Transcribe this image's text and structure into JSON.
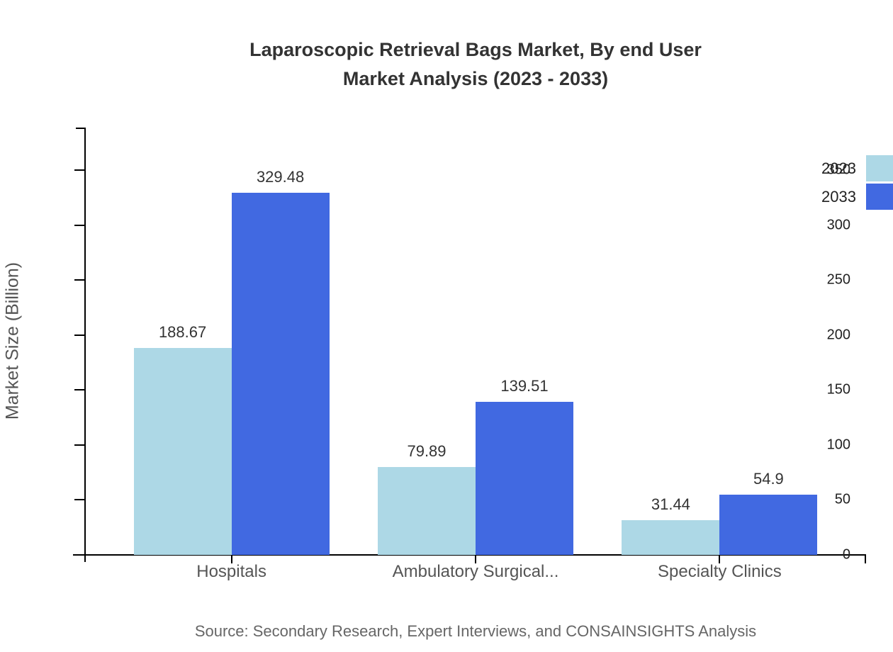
{
  "header": {
    "line1": "Laparoscopic Retrieval Bags Market, By end User",
    "line2": "Market Analysis (2023 - 2033)"
  },
  "source": "Source: Secondary Research, Expert Interviews, and CONSAINSIGHTS Analysis",
  "chart_data": {
    "type": "bar",
    "title": "Laparoscopic Retrieval Bags Market, By end User Market Analysis (2023 - 2033)",
    "categories": [
      "Hospitals",
      "Ambulatory Surgical...",
      "Specialty Clinics"
    ],
    "series": [
      {
        "name": "2023",
        "color": "#ADD8E6",
        "values": [
          188.67,
          79.89,
          31.44
        ]
      },
      {
        "name": "2033",
        "color": "#4169E1",
        "values": [
          329.48,
          139.51,
          54.9
        ]
      }
    ],
    "value_labels": [
      [
        "188.67",
        "79.89",
        "31.44"
      ],
      [
        "329.48",
        "139.51",
        "54.9"
      ]
    ],
    "xlabel": "",
    "ylabel": "Market Size (Billion)",
    "ylim": [
      0,
      389
    ],
    "yticks": [
      0,
      50,
      100,
      150,
      200,
      250,
      300,
      350
    ],
    "grid": false,
    "legend_position": "top-right",
    "axis_color": "#000000",
    "background_color": "#FFFFFF"
  }
}
